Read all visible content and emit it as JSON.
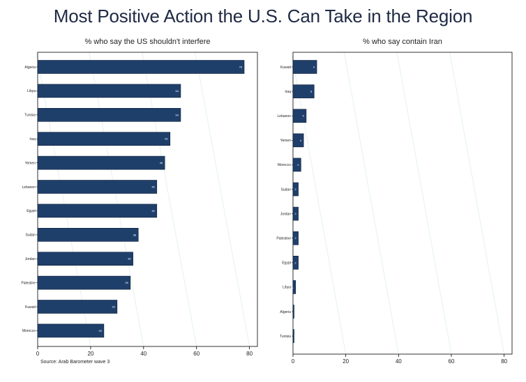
{
  "title": "Most Positive Action the U.S. Can Take in the Region",
  "source": "Source: Arab Barometer wave 3",
  "colors": {
    "bar": "#1f3f6b",
    "frame": "#000000",
    "grid": "#dfeeee"
  },
  "chart_data": [
    {
      "type": "bar",
      "orientation": "horizontal",
      "title": "% who say the US shouldn't interfere",
      "categories": [
        "Algeria",
        "Libya",
        "Tunisia",
        "Iraq",
        "Yemen",
        "Lebanon",
        "Egypt",
        "Sudan",
        "Jordan",
        "Palestine",
        "Kuwait",
        "Morocco"
      ],
      "values": [
        78,
        54,
        54,
        50,
        48,
        45,
        45,
        38,
        36,
        35,
        30,
        25
      ],
      "xlim": [
        0,
        83
      ],
      "xticks": [
        0,
        20,
        40,
        60,
        80
      ],
      "grid": true
    },
    {
      "type": "bar",
      "orientation": "horizontal",
      "title": "% who say contain Iran",
      "categories": [
        "Kuwait",
        "Iraq",
        "Lebanon",
        "Yemen",
        "Morocco",
        "Sudan",
        "Jordan",
        "Palestine",
        "Egypt",
        "Libya",
        "Algeria",
        "Tunisia"
      ],
      "values": [
        9,
        8,
        5,
        4,
        3,
        2,
        2,
        2,
        2,
        1,
        0,
        0
      ],
      "xlim": [
        0,
        83
      ],
      "xticks": [
        0,
        20,
        40,
        60,
        80
      ],
      "grid": true
    }
  ]
}
